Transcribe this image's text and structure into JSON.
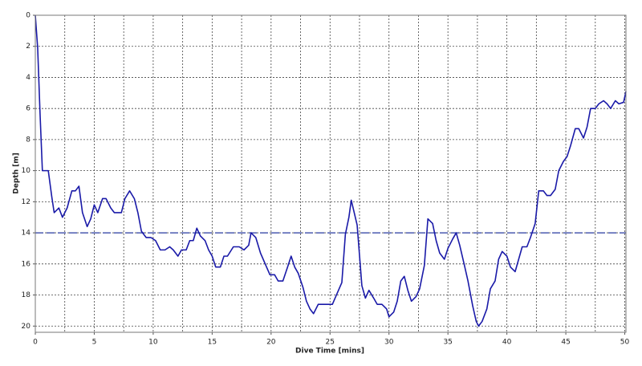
{
  "chart_data": {
    "type": "line",
    "x_label": "Dive Time [mins]",
    "y_label": "Depth [m]",
    "xlim": [
      0,
      50.1
    ],
    "ylim": [
      0,
      20.4
    ],
    "y_inverted": true,
    "xticks": [
      0,
      5,
      10,
      15,
      20,
      25,
      30,
      35,
      40,
      45,
      50
    ],
    "xgrid": [
      2.5,
      5,
      7.5,
      10,
      12.5,
      15,
      17.5,
      20,
      22.5,
      25,
      27.5,
      30,
      32.5,
      35,
      37.5,
      40,
      42.5,
      45,
      47.5,
      50
    ],
    "yticks": [
      0,
      2,
      4,
      6,
      8,
      10,
      12,
      14,
      16,
      18,
      20
    ],
    "grid": true,
    "reference_line": {
      "value": 14,
      "color": "#4a5ab0"
    },
    "x": [
      0,
      0.2,
      0.4,
      0.6,
      1.1,
      1.4,
      1.6,
      2.0,
      2.3,
      2.7,
      3.1,
      3.4,
      3.7,
      4.0,
      4.4,
      4.7,
      5.0,
      5.3,
      5.7,
      6.0,
      6.4,
      6.7,
      7.3,
      7.6,
      8.0,
      8.4,
      8.7,
      9.0,
      9.4,
      9.8,
      10.2,
      10.6,
      11.0,
      11.4,
      11.7,
      12.1,
      12.4,
      12.8,
      13.1,
      13.4,
      13.7,
      14.0,
      14.4,
      14.7,
      15.0,
      15.3,
      15.7,
      16.0,
      16.3,
      16.8,
      17.3,
      17.7,
      18.1,
      18.3,
      18.7,
      19.1,
      19.5,
      19.9,
      20.3,
      20.6,
      21.0,
      21.4,
      21.7,
      22.0,
      22.3,
      22.7,
      23.0,
      23.3,
      23.6,
      24.0,
      24.4,
      24.9,
      25.2,
      25.6,
      26.0,
      26.3,
      26.6,
      26.8,
      27.3,
      27.7,
      28.0,
      28.3,
      28.7,
      29.0,
      29.4,
      29.8,
      30.0,
      30.4,
      30.7,
      31.0,
      31.3,
      31.6,
      31.9,
      32.3,
      32.6,
      33.0,
      33.3,
      33.7,
      34.0,
      34.3,
      34.7,
      35.0,
      35.4,
      35.7,
      36.0,
      36.4,
      36.7,
      37.1,
      37.4,
      37.6,
      37.9,
      38.3,
      38.6,
      39.0,
      39.3,
      39.6,
      40.0,
      40.3,
      40.7,
      41.0,
      41.3,
      41.7,
      42.0,
      42.4,
      42.7,
      43.1,
      43.4,
      43.7,
      44.1,
      44.4,
      44.8,
      45.1,
      45.4,
      45.8,
      46.1,
      46.5,
      46.8,
      47.1,
      47.5,
      47.8,
      48.2,
      48.5,
      48.8,
      49.2,
      49.5,
      49.9,
      50.1
    ],
    "series": [
      {
        "color": "#1a1aa8",
        "values": [
          0,
          2.1,
          6.3,
          10,
          10,
          11.7,
          12.7,
          12.4,
          13,
          12.4,
          11.3,
          11.3,
          11,
          12.7,
          13.6,
          13.1,
          12.2,
          12.7,
          11.8,
          11.8,
          12.4,
          12.7,
          12.7,
          11.8,
          11.3,
          11.8,
          12.7,
          13.9,
          14.3,
          14.3,
          14.5,
          15.1,
          15.1,
          14.9,
          15.1,
          15.5,
          15.1,
          15.1,
          14.5,
          14.5,
          13.7,
          14.2,
          14.5,
          15.1,
          15.5,
          16.2,
          16.2,
          15.5,
          15.5,
          14.9,
          14.9,
          15.1,
          14.8,
          14,
          14.3,
          15.3,
          16,
          16.7,
          16.7,
          17.1,
          17.1,
          16.2,
          15.5,
          16.2,
          16.6,
          17.5,
          18.4,
          18.9,
          19.2,
          18.6,
          18.6,
          18.6,
          18.6,
          17.9,
          17.2,
          14.1,
          13,
          11.9,
          13.5,
          17.4,
          18.2,
          17.7,
          18.2,
          18.6,
          18.6,
          18.9,
          19.4,
          19.1,
          18.4,
          17.1,
          16.8,
          17.7,
          18.4,
          18.1,
          17.6,
          16.1,
          13.1,
          13.4,
          14.5,
          15.3,
          15.7,
          15,
          14.4,
          14,
          14.8,
          16.1,
          17.1,
          18.7,
          19.7,
          20,
          19.7,
          18.9,
          17.6,
          17.1,
          15.7,
          15.2,
          15.5,
          16.2,
          16.5,
          15.7,
          14.9,
          14.9,
          14.3,
          13.4,
          11.3,
          11.3,
          11.6,
          11.6,
          11.2,
          10,
          9.4,
          9.1,
          8.4,
          7.3,
          7.3,
          7.9,
          7.2,
          6,
          6,
          5.7,
          5.5,
          5.7,
          6,
          5.5,
          5.7,
          5.6,
          4.9
        ]
      }
    ]
  }
}
